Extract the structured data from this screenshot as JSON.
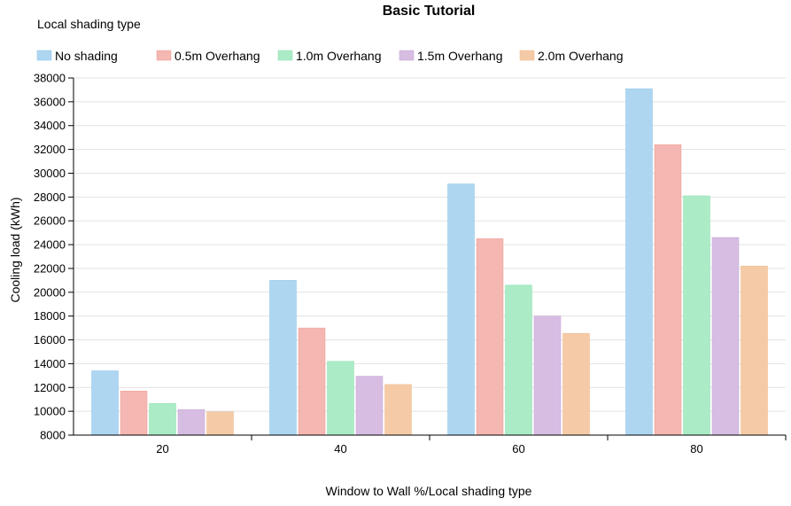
{
  "chart_data": {
    "type": "bar",
    "title": "Basic Tutorial",
    "legend_title": "Local shading type",
    "legend_position": "top-left",
    "xlabel": "Window to Wall %/Local shading type",
    "ylabel": "Cooling load (kWh)",
    "ylim": [
      8000,
      38000
    ],
    "yticks": [
      "8000",
      "10000",
      "12000",
      "14000",
      "16000",
      "18000",
      "20000",
      "22000",
      "24000",
      "26000",
      "28000",
      "30000",
      "32000",
      "34000",
      "36000",
      "38000"
    ],
    "grid": true,
    "categories": [
      "20",
      "40",
      "60",
      "80"
    ],
    "series": [
      {
        "name": "No shading",
        "color": "#aed6f1",
        "stroke": "#8ec3ea",
        "values": [
          13400,
          21000,
          29100,
          37100
        ]
      },
      {
        "name": "0.5m Overhang",
        "color": "#f5b7b1",
        "stroke": "#ec9d95",
        "values": [
          11700,
          17000,
          24500,
          32400
        ]
      },
      {
        "name": "1.0m Overhang",
        "color": "#abebc6",
        "stroke": "#8edfb0",
        "values": [
          10650,
          14200,
          20600,
          28100
        ]
      },
      {
        "name": "1.5m Overhang",
        "color": "#d7bde2",
        "stroke": "#c6a4d6",
        "values": [
          10150,
          12950,
          18000,
          24600
        ]
      },
      {
        "name": "2.0m Overhang",
        "color": "#f5cba7",
        "stroke": "#edb887",
        "values": [
          9950,
          12250,
          16550,
          22200
        ]
      }
    ]
  }
}
